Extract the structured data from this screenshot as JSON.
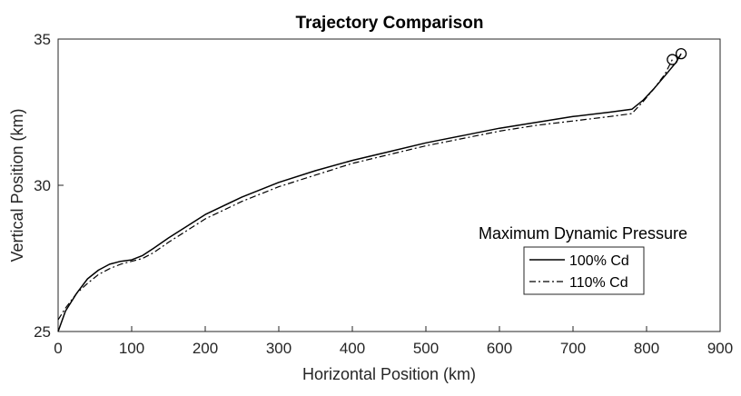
{
  "chart_data": {
    "type": "line",
    "title": "Trajectory Comparison",
    "xlabel": "Horizontal Position (km)",
    "ylabel": "Vertical Position (km)",
    "xlim": [
      0,
      900
    ],
    "ylim": [
      25,
      35
    ],
    "xticks": [
      0,
      100,
      200,
      300,
      400,
      500,
      600,
      700,
      800,
      900
    ],
    "yticks": [
      25,
      30,
      35
    ],
    "grid": false,
    "legend": {
      "title": "Maximum Dynamic Pressure",
      "placement": "center-right"
    },
    "series": [
      {
        "name": "100% Cd",
        "line_style": "solid",
        "color": "#000000",
        "x": [
          0,
          10,
          25,
          40,
          55,
          70,
          85,
          100,
          115,
          130,
          150,
          175,
          200,
          250,
          300,
          350,
          400,
          450,
          500,
          550,
          600,
          650,
          700,
          750,
          780,
          795,
          810,
          825,
          840,
          847
        ],
        "y": [
          25.0,
          25.7,
          26.3,
          26.8,
          27.1,
          27.3,
          27.4,
          27.45,
          27.6,
          27.85,
          28.2,
          28.6,
          29.0,
          29.6,
          30.1,
          30.5,
          30.85,
          31.15,
          31.45,
          31.7,
          31.95,
          32.15,
          32.35,
          32.5,
          32.6,
          32.9,
          33.3,
          33.75,
          34.2,
          34.5
        ],
        "end_marker": "circle"
      },
      {
        "name": "110% Cd",
        "line_style": "dash-dot",
        "color": "#000000",
        "x": [
          0,
          10,
          25,
          40,
          55,
          70,
          85,
          100,
          115,
          130,
          150,
          175,
          200,
          250,
          300,
          350,
          400,
          450,
          500,
          550,
          600,
          650,
          700,
          750,
          780,
          795,
          810,
          825,
          835
        ],
        "y": [
          25.4,
          25.8,
          26.3,
          26.65,
          26.95,
          27.15,
          27.3,
          27.4,
          27.5,
          27.7,
          28.05,
          28.45,
          28.85,
          29.45,
          29.95,
          30.35,
          30.75,
          31.05,
          31.35,
          31.6,
          31.85,
          32.05,
          32.2,
          32.35,
          32.45,
          32.85,
          33.3,
          33.8,
          34.3
        ],
        "end_marker": "circle"
      }
    ]
  }
}
